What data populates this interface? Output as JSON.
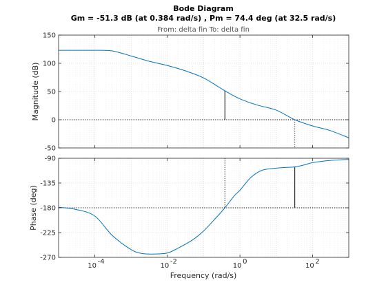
{
  "chart_data": {
    "type": "line",
    "title": "Bode Diagram",
    "subtitle": "Gm = -51.3 dB (at 0.384 rad/s) ,  Pm = 74.4 deg (at 32.5 rad/s)",
    "io_label": "From: delta fin  To: delta fin",
    "xlabel": "Frequency  (rad/s)",
    "xscale": "log",
    "xlim": [
      1e-05,
      1000
    ],
    "x_ticks": [
      0.0001,
      0.01,
      1,
      100
    ],
    "x_tick_labels": [
      {
        "base": "10",
        "exp": "-4"
      },
      {
        "base": "10",
        "exp": "-2"
      },
      {
        "base": "10",
        "exp": "0"
      },
      {
        "base": "10",
        "exp": "2"
      }
    ],
    "grid": true,
    "magnitude": {
      "ylabel": "Magnitude (dB)",
      "ylim": [
        -50,
        150
      ],
      "y_ticks": [
        -50,
        0,
        50,
        100,
        150
      ],
      "x": [
        1e-05,
        3e-05,
        0.0001,
        0.0003,
        0.001,
        0.003,
        0.01,
        0.03,
        0.1,
        0.384,
        1,
        3,
        10,
        32.5,
        100,
        300,
        1000
      ],
      "values": [
        123,
        123,
        123,
        122,
        113,
        104,
        96,
        87,
        74,
        51.3,
        37,
        26,
        17,
        0,
        -11,
        -19,
        -32
      ]
    },
    "phase": {
      "ylabel": "Phase (deg)",
      "ylim": [
        -270,
        -90
      ],
      "y_ticks": [
        -270,
        -225,
        -180,
        -135,
        -90
      ],
      "x": [
        1e-05,
        3e-05,
        0.0001,
        0.0003,
        0.001,
        0.002,
        0.004,
        0.01,
        0.02,
        0.05,
        0.1,
        0.2,
        0.384,
        0.7,
        1,
        2,
        4,
        10,
        32.5,
        60,
        100,
        300,
        1000
      ],
      "values": [
        -179,
        -183,
        -195,
        -230,
        -256,
        -263,
        -264,
        -262,
        -253,
        -238,
        -222,
        -201,
        -180,
        -158,
        -148,
        -125,
        -112,
        -108,
        -105.6,
        -102,
        -98,
        -94,
        -92
      ]
    },
    "gain_margin": {
      "value_db": -51.3,
      "frequency": 0.384
    },
    "phase_margin": {
      "value_deg": 74.4,
      "frequency": 32.5
    }
  }
}
